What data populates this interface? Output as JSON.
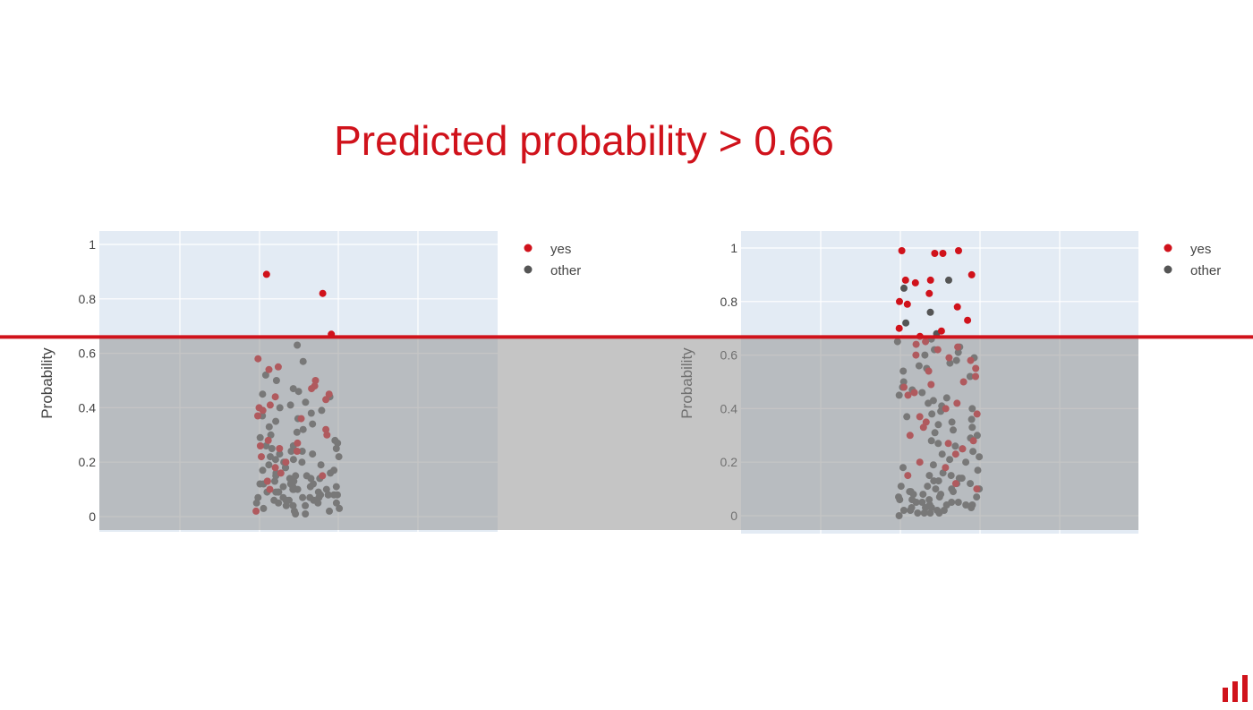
{
  "slide": {
    "title": "Predicted probability > 0.66",
    "threshold": 0.66,
    "colors": {
      "accent": "#d0121b",
      "yes": "#d0121b",
      "other": "#555555",
      "plot_bg": "#e3ebf4",
      "shade": "rgba(150,150,150,0.55)"
    },
    "logo_icon": "bar-chart-logo-icon"
  },
  "chart_data": [
    {
      "type": "scatter",
      "title": "",
      "xlabel": "",
      "ylabel": "Probability",
      "ylim": [
        -0.06,
        1.05
      ],
      "yticks": [
        "0",
        "0.2",
        "0.4",
        "0.6",
        "0.8",
        "1"
      ],
      "legend_position": "top-right",
      "grid": true,
      "series": [
        {
          "name": "yes",
          "color": "#d0121b",
          "y": [
            0.89,
            0.82,
            0.67,
            0.55,
            0.58,
            0.54,
            0.5,
            0.48,
            0.47,
            0.45,
            0.44,
            0.43,
            0.41,
            0.4,
            0.39,
            0.37,
            0.36,
            0.32,
            0.3,
            0.28,
            0.27,
            0.26,
            0.25,
            0.24,
            0.22,
            0.2,
            0.18,
            0.16,
            0.15,
            0.13,
            0.1,
            0.02
          ]
        },
        {
          "name": "other",
          "color": "#555555",
          "y": [
            0.63,
            0.57,
            0.52,
            0.5,
            0.47,
            0.46,
            0.45,
            0.44,
            0.42,
            0.41,
            0.4,
            0.39,
            0.38,
            0.37,
            0.36,
            0.35,
            0.34,
            0.33,
            0.32,
            0.31,
            0.3,
            0.29,
            0.28,
            0.27,
            0.26,
            0.26,
            0.25,
            0.25,
            0.24,
            0.24,
            0.23,
            0.23,
            0.22,
            0.22,
            0.21,
            0.21,
            0.2,
            0.2,
            0.19,
            0.19,
            0.18,
            0.18,
            0.17,
            0.17,
            0.16,
            0.16,
            0.15,
            0.15,
            0.15,
            0.14,
            0.14,
            0.14,
            0.13,
            0.13,
            0.13,
            0.12,
            0.12,
            0.12,
            0.12,
            0.11,
            0.11,
            0.11,
            0.11,
            0.1,
            0.1,
            0.1,
            0.1,
            0.1,
            0.09,
            0.09,
            0.09,
            0.09,
            0.09,
            0.08,
            0.08,
            0.08,
            0.08,
            0.08,
            0.07,
            0.07,
            0.07,
            0.07,
            0.07,
            0.06,
            0.06,
            0.06,
            0.06,
            0.05,
            0.05,
            0.05,
            0.05,
            0.04,
            0.04,
            0.04,
            0.03,
            0.03,
            0.02,
            0.02,
            0.01,
            0.01
          ]
        }
      ]
    },
    {
      "type": "scatter",
      "title": "",
      "xlabel": "",
      "ylabel": "Probability",
      "ylim": [
        -0.06,
        1.07
      ],
      "yticks": [
        "0",
        "0.2",
        "0.4",
        "0.6",
        "0.8",
        "1"
      ],
      "legend_position": "top-right",
      "grid": true,
      "series": [
        {
          "name": "yes",
          "color": "#d0121b",
          "y": [
            0.99,
            0.99,
            0.98,
            0.98,
            0.9,
            0.88,
            0.88,
            0.87,
            0.83,
            0.8,
            0.79,
            0.78,
            0.73,
            0.7,
            0.69,
            0.67,
            0.65,
            0.64,
            0.63,
            0.62,
            0.6,
            0.59,
            0.58,
            0.55,
            0.54,
            0.52,
            0.5,
            0.49,
            0.48,
            0.46,
            0.45,
            0.42,
            0.4,
            0.38,
            0.37,
            0.35,
            0.33,
            0.3,
            0.28,
            0.27,
            0.25,
            0.23,
            0.2,
            0.18,
            0.15,
            0.12,
            0.1
          ]
        },
        {
          "name": "other",
          "color": "#555555",
          "y": [
            0.88,
            0.85,
            0.76,
            0.72,
            0.68,
            0.66,
            0.65,
            0.63,
            0.62,
            0.61,
            0.6,
            0.59,
            0.58,
            0.57,
            0.56,
            0.55,
            0.54,
            0.52,
            0.5,
            0.48,
            0.47,
            0.46,
            0.45,
            0.44,
            0.43,
            0.42,
            0.41,
            0.4,
            0.39,
            0.38,
            0.37,
            0.36,
            0.35,
            0.34,
            0.33,
            0.32,
            0.31,
            0.3,
            0.29,
            0.28,
            0.27,
            0.26,
            0.25,
            0.24,
            0.23,
            0.22,
            0.21,
            0.2,
            0.19,
            0.18,
            0.17,
            0.16,
            0.15,
            0.15,
            0.14,
            0.14,
            0.13,
            0.13,
            0.12,
            0.12,
            0.11,
            0.11,
            0.1,
            0.1,
            0.1,
            0.09,
            0.09,
            0.09,
            0.08,
            0.08,
            0.08,
            0.07,
            0.07,
            0.07,
            0.06,
            0.06,
            0.06,
            0.05,
            0.05,
            0.05,
            0.05,
            0.04,
            0.04,
            0.04,
            0.04,
            0.03,
            0.03,
            0.03,
            0.03,
            0.02,
            0.02,
            0.02,
            0.02,
            0.01,
            0.01,
            0.01,
            0.01,
            0.0
          ]
        }
      ]
    }
  ]
}
